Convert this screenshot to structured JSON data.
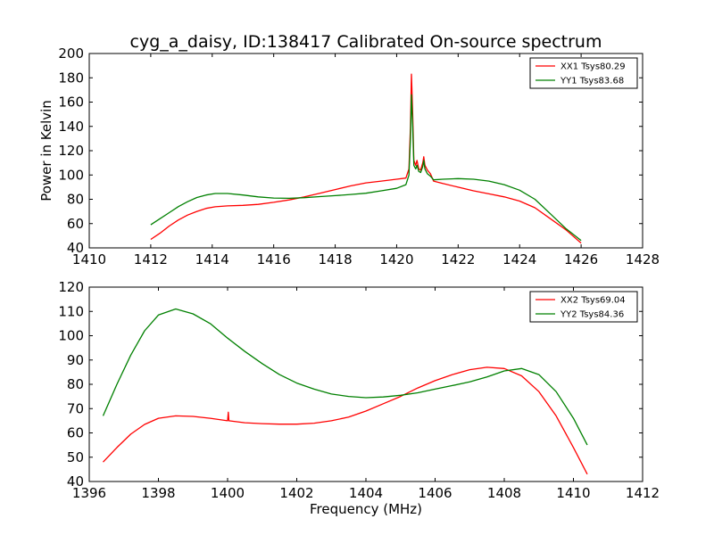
{
  "figure": {
    "title": "cyg_a_daisy, ID:138417 Calibrated On-source spectrum",
    "xlabel": "Frequency (MHz)"
  },
  "chart_data": [
    {
      "type": "line",
      "title": "cyg_a_daisy, ID:138417 Calibrated On-source spectrum",
      "xlabel": "",
      "ylabel": "Power in Kelvin",
      "xlim": [
        1410,
        1428
      ],
      "ylim": [
        40,
        200
      ],
      "xticks": [
        1410,
        1412,
        1414,
        1416,
        1418,
        1420,
        1422,
        1424,
        1426,
        1428
      ],
      "yticks": [
        40,
        60,
        80,
        100,
        120,
        140,
        160,
        180,
        200
      ],
      "grid": false,
      "legend_position": "top-right",
      "series": [
        {
          "name": "XX1 Tsys80.29",
          "color": "#ff0000",
          "points": [
            [
              1412.0,
              47
            ],
            [
              1412.3,
              52
            ],
            [
              1412.6,
              58
            ],
            [
              1412.9,
              63
            ],
            [
              1413.2,
              67
            ],
            [
              1413.5,
              70
            ],
            [
              1413.8,
              72.5
            ],
            [
              1414.1,
              73.8
            ],
            [
              1414.5,
              74.6
            ],
            [
              1415.0,
              75
            ],
            [
              1415.5,
              75.8
            ],
            [
              1416.0,
              77.5
            ],
            [
              1416.5,
              79.5
            ],
            [
              1417.0,
              82
            ],
            [
              1417.5,
              85
            ],
            [
              1418.0,
              88
            ],
            [
              1418.5,
              91
            ],
            [
              1419.0,
              93.5
            ],
            [
              1419.5,
              95
            ],
            [
              1420.0,
              96.5
            ],
            [
              1420.3,
              97.5
            ],
            [
              1420.4,
              105
            ],
            [
              1420.45,
              140
            ],
            [
              1420.48,
              183
            ],
            [
              1420.52,
              150
            ],
            [
              1420.56,
              112
            ],
            [
              1420.62,
              108
            ],
            [
              1420.66,
              112
            ],
            [
              1420.72,
              105
            ],
            [
              1420.78,
              104
            ],
            [
              1420.85,
              110
            ],
            [
              1420.88,
              115
            ],
            [
              1420.92,
              108
            ],
            [
              1421.0,
              104
            ],
            [
              1421.1,
              101
            ],
            [
              1421.2,
              95
            ],
            [
              1421.5,
              93
            ],
            [
              1422.0,
              90
            ],
            [
              1422.5,
              87
            ],
            [
              1423.0,
              84.5
            ],
            [
              1423.5,
              82
            ],
            [
              1424.0,
              78.5
            ],
            [
              1424.5,
              73
            ],
            [
              1425.0,
              64
            ],
            [
              1425.5,
              55
            ],
            [
              1426.0,
              44
            ]
          ]
        },
        {
          "name": "YY1 Tsys83.68",
          "color": "#008000",
          "points": [
            [
              1412.0,
              59
            ],
            [
              1412.3,
              64
            ],
            [
              1412.6,
              69
            ],
            [
              1412.9,
              74
            ],
            [
              1413.2,
              78
            ],
            [
              1413.5,
              81.5
            ],
            [
              1413.8,
              83.5
            ],
            [
              1414.1,
              84.8
            ],
            [
              1414.5,
              84.8
            ],
            [
              1415.0,
              83.5
            ],
            [
              1415.5,
              82
            ],
            [
              1416.0,
              81
            ],
            [
              1416.5,
              80.8
            ],
            [
              1417.0,
              81.3
            ],
            [
              1417.5,
              82.2
            ],
            [
              1418.0,
              83
            ],
            [
              1418.5,
              84
            ],
            [
              1419.0,
              85
            ],
            [
              1419.5,
              87
            ],
            [
              1420.0,
              89
            ],
            [
              1420.3,
              92
            ],
            [
              1420.4,
              100
            ],
            [
              1420.45,
              130
            ],
            [
              1420.48,
              166
            ],
            [
              1420.52,
              140
            ],
            [
              1420.56,
              108
            ],
            [
              1420.62,
              105
            ],
            [
              1420.66,
              108
            ],
            [
              1420.72,
              103
            ],
            [
              1420.78,
              102
            ],
            [
              1420.85,
              107
            ],
            [
              1420.88,
              112
            ],
            [
              1420.92,
              105
            ],
            [
              1421.0,
              101
            ],
            [
              1421.1,
              99
            ],
            [
              1421.2,
              96
            ],
            [
              1421.5,
              96.5
            ],
            [
              1422.0,
              97
            ],
            [
              1422.5,
              96.5
            ],
            [
              1423.0,
              95
            ],
            [
              1423.5,
              92
            ],
            [
              1424.0,
              87.5
            ],
            [
              1424.5,
              80
            ],
            [
              1425.0,
              68
            ],
            [
              1425.5,
              56
            ],
            [
              1426.0,
              46
            ]
          ]
        }
      ]
    },
    {
      "type": "line",
      "title": "",
      "xlabel": "Frequency (MHz)",
      "ylabel": "",
      "xlim": [
        1396,
        1412
      ],
      "ylim": [
        40,
        120
      ],
      "xticks": [
        1396,
        1398,
        1400,
        1402,
        1404,
        1406,
        1408,
        1410,
        1412
      ],
      "yticks": [
        40,
        50,
        60,
        70,
        80,
        90,
        100,
        110,
        120
      ],
      "grid": false,
      "legend_position": "top-right",
      "series": [
        {
          "name": "XX2 Tsys69.04",
          "color": "#ff0000",
          "points": [
            [
              1396.4,
              48
            ],
            [
              1396.8,
              54
            ],
            [
              1397.2,
              59.5
            ],
            [
              1397.6,
              63.5
            ],
            [
              1398.0,
              66
            ],
            [
              1398.5,
              67
            ],
            [
              1399.0,
              66.8
            ],
            [
              1399.5,
              66
            ],
            [
              1400.0,
              65
            ],
            [
              1400.02,
              68.5
            ],
            [
              1400.04,
              65
            ],
            [
              1400.5,
              64.2
            ],
            [
              1401.0,
              63.8
            ],
            [
              1401.5,
              63.6
            ],
            [
              1402.0,
              63.6
            ],
            [
              1402.5,
              64
            ],
            [
              1403.0,
              65
            ],
            [
              1403.5,
              66.5
            ],
            [
              1404.0,
              69
            ],
            [
              1404.5,
              72
            ],
            [
              1405.0,
              75
            ],
            [
              1405.5,
              78.5
            ],
            [
              1406.0,
              81.5
            ],
            [
              1406.5,
              84
            ],
            [
              1407.0,
              86
            ],
            [
              1407.5,
              87
            ],
            [
              1408.0,
              86.5
            ],
            [
              1408.5,
              83.5
            ],
            [
              1409.0,
              77
            ],
            [
              1409.5,
              67
            ],
            [
              1410.0,
              54
            ],
            [
              1410.4,
              43
            ]
          ]
        },
        {
          "name": "YY2 Tsys84.36",
          "color": "#008000",
          "points": [
            [
              1396.4,
              67
            ],
            [
              1396.8,
              80
            ],
            [
              1397.2,
              92
            ],
            [
              1397.6,
              102
            ],
            [
              1398.0,
              108.5
            ],
            [
              1398.5,
              111
            ],
            [
              1399.0,
              109
            ],
            [
              1399.5,
              105
            ],
            [
              1400.0,
              99
            ],
            [
              1400.5,
              93.5
            ],
            [
              1401.0,
              88.5
            ],
            [
              1401.5,
              84
            ],
            [
              1402.0,
              80.5
            ],
            [
              1402.5,
              78
            ],
            [
              1403.0,
              76
            ],
            [
              1403.5,
              75
            ],
            [
              1404.0,
              74.5
            ],
            [
              1404.5,
              74.8
            ],
            [
              1405.0,
              75.5
            ],
            [
              1405.5,
              76.5
            ],
            [
              1406.0,
              78
            ],
            [
              1406.5,
              79.5
            ],
            [
              1407.0,
              81
            ],
            [
              1407.5,
              83
            ],
            [
              1408.0,
              85.5
            ],
            [
              1408.5,
              86.5
            ],
            [
              1409.0,
              84
            ],
            [
              1409.5,
              77
            ],
            [
              1410.0,
              66
            ],
            [
              1410.4,
              55
            ]
          ]
        }
      ]
    }
  ]
}
